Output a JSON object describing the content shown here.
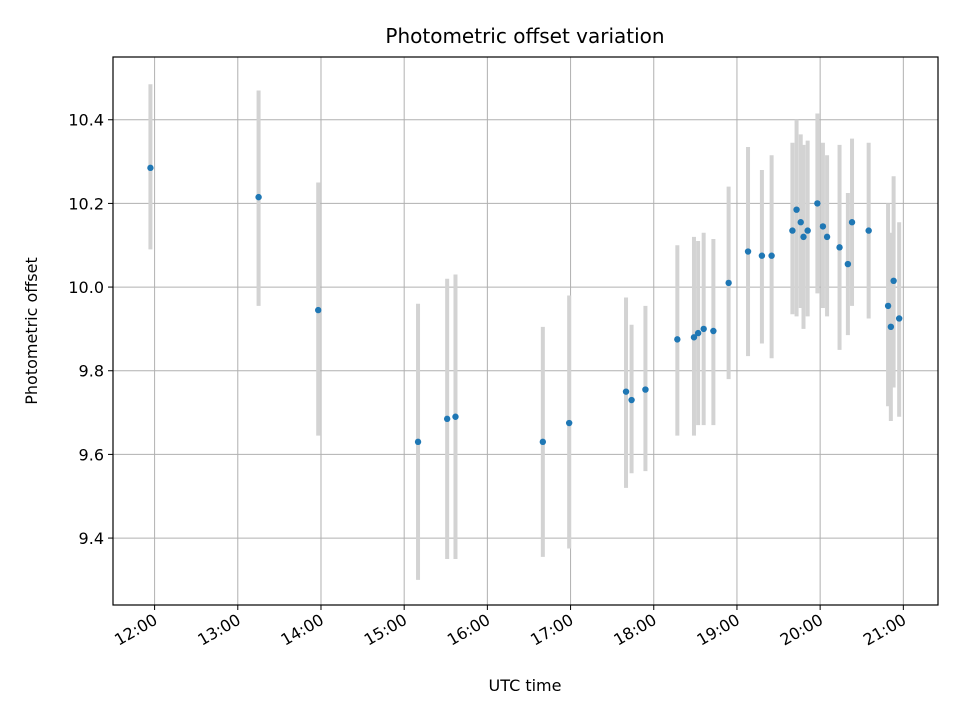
{
  "chart_data": {
    "type": "scatter",
    "title": "Photometric offset variation",
    "xlabel": "UTC time",
    "ylabel": "Photometric offset",
    "x_axis": {
      "type": "time",
      "range": [
        "11:30",
        "21:25"
      ],
      "ticks": [
        "12:00",
        "13:00",
        "14:00",
        "15:00",
        "16:00",
        "17:00",
        "18:00",
        "19:00",
        "20:00",
        "21:00"
      ]
    },
    "y_axis": {
      "range": [
        9.24,
        10.55
      ],
      "ticks": [
        9.4,
        9.6,
        9.8,
        10.0,
        10.2,
        10.4
      ],
      "tick_labels": [
        "9.4",
        "9.6",
        "9.8",
        "10.0",
        "10.2",
        "10.4"
      ]
    },
    "grid": true,
    "marker_color": "#1f77b4",
    "errorbar_color": "#d3d3d3",
    "series": [
      {
        "points": [
          {
            "t": "11:57",
            "y": 10.285,
            "lo": 10.09,
            "hi": 10.485
          },
          {
            "t": "13:15",
            "y": 10.215,
            "lo": 9.955,
            "hi": 10.47
          },
          {
            "t": "13:58",
            "y": 9.945,
            "lo": 9.645,
            "hi": 10.25
          },
          {
            "t": "15:10",
            "y": 9.63,
            "lo": 9.3,
            "hi": 9.96
          },
          {
            "t": "15:31",
            "y": 9.685,
            "lo": 9.35,
            "hi": 10.02
          },
          {
            "t": "15:37",
            "y": 9.69,
            "lo": 9.35,
            "hi": 10.03
          },
          {
            "t": "16:40",
            "y": 9.63,
            "lo": 9.355,
            "hi": 9.905
          },
          {
            "t": "16:59",
            "y": 9.675,
            "lo": 9.375,
            "hi": 9.98
          },
          {
            "t": "17:40",
            "y": 9.75,
            "lo": 9.52,
            "hi": 9.975
          },
          {
            "t": "17:44",
            "y": 9.73,
            "lo": 9.555,
            "hi": 9.91
          },
          {
            "t": "17:54",
            "y": 9.755,
            "lo": 9.56,
            "hi": 9.955
          },
          {
            "t": "18:17",
            "y": 9.875,
            "lo": 9.645,
            "hi": 10.1
          },
          {
            "t": "18:29",
            "y": 9.88,
            "lo": 9.645,
            "hi": 10.12
          },
          {
            "t": "18:32",
            "y": 9.89,
            "lo": 9.67,
            "hi": 10.11
          },
          {
            "t": "18:36",
            "y": 9.9,
            "lo": 9.67,
            "hi": 10.13
          },
          {
            "t": "18:43",
            "y": 9.895,
            "lo": 9.67,
            "hi": 10.115
          },
          {
            "t": "18:54",
            "y": 10.01,
            "lo": 9.78,
            "hi": 10.24
          },
          {
            "t": "19:08",
            "y": 10.085,
            "lo": 9.835,
            "hi": 10.335
          },
          {
            "t": "19:18",
            "y": 10.075,
            "lo": 9.865,
            "hi": 10.28
          },
          {
            "t": "19:25",
            "y": 10.075,
            "lo": 9.83,
            "hi": 10.315
          },
          {
            "t": "19:40",
            "y": 10.135,
            "lo": 9.935,
            "hi": 10.345
          },
          {
            "t": "19:43",
            "y": 10.185,
            "lo": 9.93,
            "hi": 10.4
          },
          {
            "t": "19:46",
            "y": 10.155,
            "lo": 9.95,
            "hi": 10.365
          },
          {
            "t": "19:48",
            "y": 10.12,
            "lo": 9.9,
            "hi": 10.34
          },
          {
            "t": "19:51",
            "y": 10.135,
            "lo": 9.93,
            "hi": 10.35
          },
          {
            "t": "19:58",
            "y": 10.2,
            "lo": 9.985,
            "hi": 10.415
          },
          {
            "t": "20:02",
            "y": 10.145,
            "lo": 9.95,
            "hi": 10.345
          },
          {
            "t": "20:05",
            "y": 10.12,
            "lo": 9.93,
            "hi": 10.315
          },
          {
            "t": "20:14",
            "y": 10.095,
            "lo": 9.85,
            "hi": 10.34
          },
          {
            "t": "20:20",
            "y": 10.055,
            "lo": 9.885,
            "hi": 10.225
          },
          {
            "t": "20:23",
            "y": 10.155,
            "lo": 9.955,
            "hi": 10.355
          },
          {
            "t": "20:35",
            "y": 10.135,
            "lo": 9.925,
            "hi": 10.345
          },
          {
            "t": "20:49",
            "y": 9.955,
            "lo": 9.715,
            "hi": 10.2
          },
          {
            "t": "20:51",
            "y": 9.905,
            "lo": 9.68,
            "hi": 10.13
          },
          {
            "t": "20:53",
            "y": 10.015,
            "lo": 9.76,
            "hi": 10.265
          },
          {
            "t": "20:57",
            "y": 9.925,
            "lo": 9.69,
            "hi": 10.155
          }
        ]
      }
    ]
  }
}
